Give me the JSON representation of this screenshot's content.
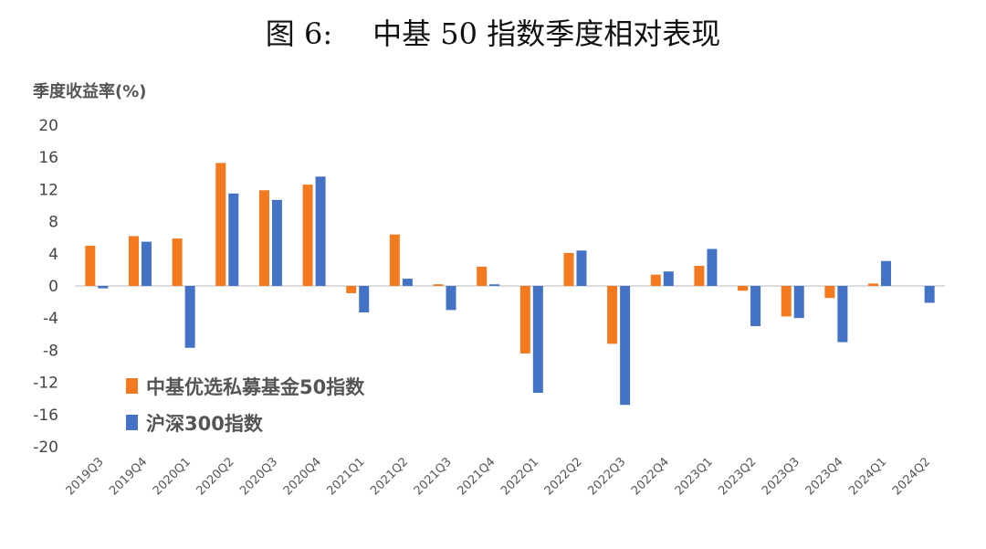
{
  "figure": {
    "label": "图 6:",
    "title": "中基 50 指数季度相对表现"
  },
  "chart_data": {
    "type": "bar",
    "title": "中基 50 指数季度相对表现",
    "ylabel": "季度收益率(%)",
    "xlabel": "",
    "ylim": [
      -20,
      20
    ],
    "yticks": [
      20,
      16,
      12,
      8,
      4,
      0,
      -4,
      -8,
      -12,
      -16,
      -20
    ],
    "grid": false,
    "legend_position": "lower-left",
    "categories": [
      "2019Q3",
      "2019Q4",
      "2020Q1",
      "2020Q2",
      "2020Q3",
      "2020Q4",
      "2021Q1",
      "2021Q2",
      "2021Q3",
      "2021Q4",
      "2022Q1",
      "2022Q2",
      "2022Q3",
      "2022Q4",
      "2023Q1",
      "2023Q2",
      "2023Q3",
      "2023Q4",
      "2024Q1",
      "2024Q2"
    ],
    "series": [
      {
        "name": "中基优选私募基金50指数",
        "color": "#F47A20",
        "values": [
          5.0,
          6.2,
          5.9,
          15.3,
          11.9,
          12.6,
          -0.9,
          6.4,
          0.2,
          2.4,
          -8.4,
          4.1,
          -7.2,
          1.4,
          2.5,
          -0.6,
          -3.8,
          -1.5,
          0.3,
          0.0
        ]
      },
      {
        "name": "沪深300指数",
        "color": "#4472C4",
        "values": [
          -0.3,
          5.5,
          -7.7,
          11.5,
          10.7,
          13.6,
          -3.3,
          0.9,
          -3.0,
          0.2,
          -13.3,
          4.4,
          -14.8,
          1.8,
          4.6,
          -5.0,
          -4.0,
          -7.0,
          3.1,
          -2.1
        ]
      }
    ]
  }
}
